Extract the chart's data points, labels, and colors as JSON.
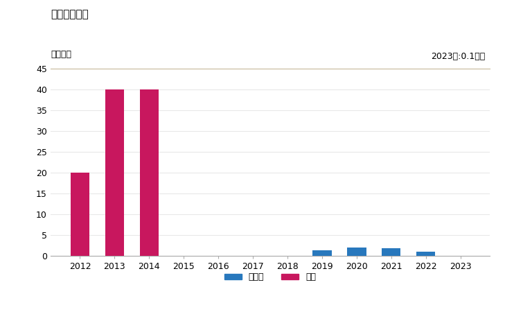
{
  "title": "輸入量の推移",
  "unit_label": "単位トン",
  "annotation": "2023年:0.1トン",
  "years": [
    2012,
    2013,
    2014,
    2015,
    2016,
    2017,
    2018,
    2019,
    2020,
    2021,
    2022,
    2023
  ],
  "india_values": [
    0,
    0,
    0,
    0,
    0,
    0,
    0,
    1.3,
    2.0,
    1.8,
    1.0,
    0
  ],
  "taiwan_values": [
    20,
    40,
    40,
    0,
    0,
    0,
    0,
    0,
    0,
    0,
    0,
    0
  ],
  "india_color": "#2878bd",
  "taiwan_color": "#c8175e",
  "ylim": [
    0,
    45
  ],
  "yticks": [
    0,
    5,
    10,
    15,
    20,
    25,
    30,
    35,
    40,
    45
  ],
  "bg_color": "#ffffff",
  "plot_bg_color": "#ffffff",
  "top_border_color": "#c8b89a",
  "grid_color": "#e8e8e8",
  "title_fontsize": 11,
  "label_fontsize": 9,
  "tick_fontsize": 9,
  "legend_india": "インド",
  "legend_taiwan": "台湾",
  "bar_width": 0.55
}
